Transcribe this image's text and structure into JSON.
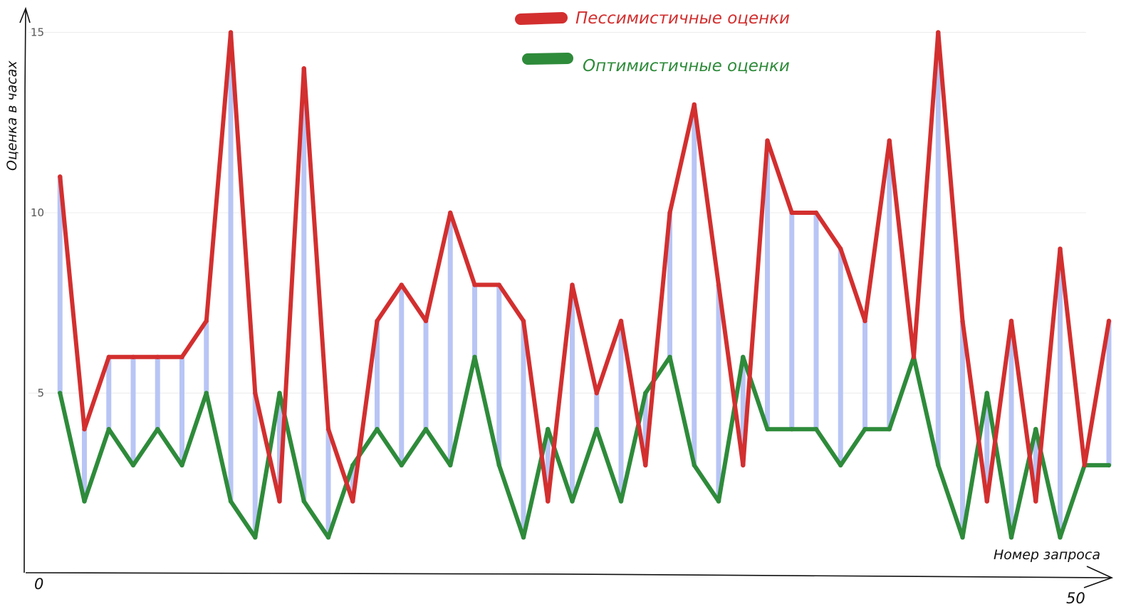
{
  "chart_data": {
    "type": "line",
    "title": "",
    "xlabel": "Номер запроса",
    "ylabel": "Оценка в часах",
    "x_start_label": "0",
    "x_end_label": "50",
    "xlim": [
      0,
      50
    ],
    "ylim": [
      0,
      15
    ],
    "yticks": [
      "5",
      "10",
      "15"
    ],
    "grid": true,
    "legend_position": "top-center",
    "x": [
      1,
      2,
      3,
      4,
      5,
      6,
      7,
      8,
      9,
      10,
      11,
      12,
      13,
      14,
      15,
      16,
      17,
      18,
      19,
      20,
      21,
      22,
      23,
      24,
      25,
      26,
      27,
      28,
      29,
      30,
      31,
      32,
      33,
      34,
      35,
      36,
      37,
      38,
      39,
      40,
      41,
      42,
      43,
      44
    ],
    "series": [
      {
        "name": "Пессимистичные оценки",
        "color": "#d32f2f",
        "values": [
          11,
          4,
          6,
          6,
          6,
          6,
          7,
          15,
          5,
          2,
          14,
          4,
          2,
          7,
          8,
          7,
          10,
          8,
          8,
          7,
          2,
          8,
          5,
          7,
          3,
          10,
          13,
          8,
          3,
          12,
          10,
          10,
          9,
          7,
          12,
          6,
          15,
          7,
          2,
          7,
          2,
          9,
          3,
          7
        ]
      },
      {
        "name": "Оптимистичные оценки",
        "color": "#2e8b3a",
        "values": [
          5,
          2,
          4,
          3,
          4,
          3,
          5,
          2,
          1,
          5,
          2,
          1,
          3,
          4,
          3,
          4,
          3,
          6,
          3,
          1,
          4,
          2,
          4,
          2,
          5,
          6,
          3,
          2,
          6,
          4,
          4,
          4,
          3,
          4,
          4,
          6,
          3,
          1,
          5,
          1,
          4,
          1,
          3,
          3
        ]
      }
    ],
    "range_bar_color": "#b8c5f5"
  }
}
